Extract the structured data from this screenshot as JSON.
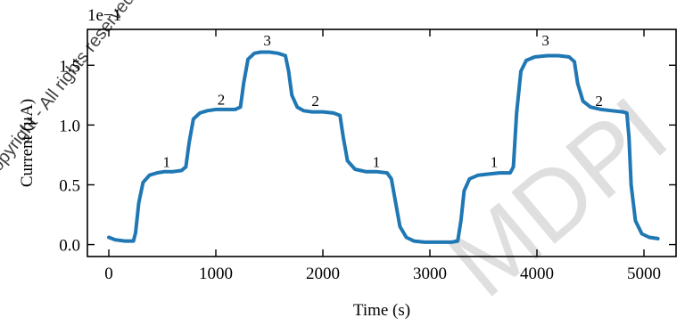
{
  "chart_data": {
    "type": "line",
    "xlabel": "Time (s)",
    "ylabel": "Current (μA)",
    "offset_text": "1e−1",
    "xlim": [
      -200,
      5300
    ],
    "ylim": [
      -0.1,
      1.8
    ],
    "x_ticks": [
      0,
      1000,
      2000,
      3000,
      4000,
      5000
    ],
    "y_ticks": [
      0.0,
      0.5,
      1.0,
      1.5
    ],
    "x_tick_labels": [
      "0",
      "1000",
      "2000",
      "3000",
      "4000",
      "5000"
    ],
    "y_tick_labels": [
      "0.0",
      "0.5",
      "1.0",
      "1.5"
    ],
    "grid": false,
    "legend": "none",
    "series": [
      {
        "color": "#1f77b4",
        "x": [
          0,
          60,
          150,
          230,
          250,
          280,
          320,
          380,
          450,
          520,
          600,
          680,
          720,
          750,
          790,
          850,
          920,
          1000,
          1100,
          1180,
          1230,
          1260,
          1300,
          1360,
          1420,
          1500,
          1580,
          1650,
          1680,
          1710,
          1760,
          1820,
          1900,
          2000,
          2100,
          2160,
          2190,
          2230,
          2300,
          2400,
          2500,
          2600,
          2640,
          2680,
          2720,
          2780,
          2850,
          2950,
          3100,
          3200,
          3260,
          3290,
          3320,
          3370,
          3450,
          3550,
          3650,
          3750,
          3780,
          3810,
          3850,
          3900,
          3980,
          4100,
          4200,
          4300,
          4350,
          4380,
          4430,
          4500,
          4600,
          4700,
          4800,
          4840,
          4860,
          4880,
          4920,
          4980,
          5050,
          5130
        ],
        "y": [
          0.06,
          0.04,
          0.03,
          0.03,
          0.1,
          0.35,
          0.52,
          0.58,
          0.6,
          0.61,
          0.61,
          0.62,
          0.65,
          0.85,
          1.05,
          1.1,
          1.12,
          1.13,
          1.13,
          1.13,
          1.15,
          1.35,
          1.55,
          1.6,
          1.61,
          1.61,
          1.6,
          1.58,
          1.45,
          1.25,
          1.15,
          1.12,
          1.11,
          1.11,
          1.1,
          1.08,
          0.9,
          0.7,
          0.63,
          0.61,
          0.61,
          0.6,
          0.55,
          0.35,
          0.15,
          0.06,
          0.03,
          0.02,
          0.02,
          0.02,
          0.03,
          0.2,
          0.45,
          0.55,
          0.58,
          0.59,
          0.6,
          0.6,
          0.65,
          1.1,
          1.45,
          1.54,
          1.57,
          1.58,
          1.58,
          1.57,
          1.53,
          1.35,
          1.2,
          1.15,
          1.13,
          1.12,
          1.11,
          1.1,
          0.9,
          0.5,
          0.2,
          0.09,
          0.06,
          0.05
        ]
      }
    ],
    "annotations": [
      {
        "text": "1",
        "x": 540,
        "y": 0.65
      },
      {
        "text": "2",
        "x": 1050,
        "y": 1.17
      },
      {
        "text": "3",
        "x": 1480,
        "y": 1.665
      },
      {
        "text": "2",
        "x": 1930,
        "y": 1.16
      },
      {
        "text": "1",
        "x": 2500,
        "y": 0.65
      },
      {
        "text": "1",
        "x": 3600,
        "y": 0.65
      },
      {
        "text": "3",
        "x": 4080,
        "y": 1.665
      },
      {
        "text": "2",
        "x": 4580,
        "y": 1.16
      }
    ]
  },
  "watermark": {
    "lines": [
      "Copyright - All rights reserved - Reproduction is prohibited",
      "MDPI"
    ]
  }
}
